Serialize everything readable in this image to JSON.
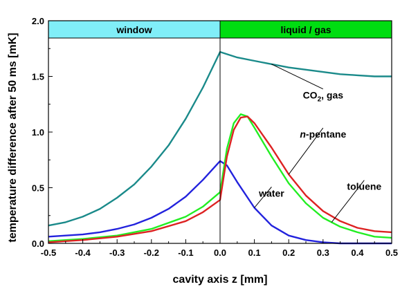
{
  "chart_data": {
    "type": "line",
    "title": "",
    "xlabel": "cavity axis z [mm]",
    "ylabel": "temperature difference after 50 ms [mK]",
    "xlim": [
      -0.5,
      0.5
    ],
    "ylim": [
      0.0,
      2.0
    ],
    "xticks": [
      "-0.5",
      "-0.4",
      "-0.3",
      "-0.2",
      "-0.1",
      "0.0",
      "0.1",
      "0.2",
      "0.3",
      "0.4",
      "0.5"
    ],
    "yticks": [
      "0.0",
      "0.5",
      "1.0",
      "1.5",
      "2.0"
    ],
    "grid": false,
    "legend": "none",
    "regions": [
      {
        "label": "window",
        "x_range": [
          -0.5,
          0.0
        ],
        "color": "#80eef8"
      },
      {
        "label": "liquid / gas",
        "x_range": [
          0.0,
          0.5
        ],
        "color": "#00dd11"
      }
    ],
    "series": [
      {
        "label": "CO2, gas",
        "color": "#1a8a8a",
        "x": [
          -0.5,
          -0.45,
          -0.4,
          -0.35,
          -0.3,
          -0.25,
          -0.2,
          -0.15,
          -0.1,
          -0.05,
          0.0,
          0.05,
          0.1,
          0.15,
          0.2,
          0.25,
          0.3,
          0.35,
          0.4,
          0.45,
          0.5
        ],
        "y": [
          0.16,
          0.19,
          0.24,
          0.31,
          0.41,
          0.53,
          0.69,
          0.88,
          1.12,
          1.4,
          1.72,
          1.67,
          1.64,
          1.61,
          1.58,
          1.56,
          1.54,
          1.52,
          1.51,
          1.5,
          1.5
        ]
      },
      {
        "label": "water",
        "color": "#2222dd",
        "x": [
          -0.5,
          -0.45,
          -0.4,
          -0.35,
          -0.3,
          -0.25,
          -0.2,
          -0.15,
          -0.1,
          -0.05,
          0.0,
          0.02,
          0.05,
          0.1,
          0.15,
          0.2,
          0.25,
          0.3,
          0.35,
          0.4,
          0.5
        ],
        "y": [
          0.06,
          0.07,
          0.08,
          0.1,
          0.13,
          0.17,
          0.23,
          0.31,
          0.42,
          0.57,
          0.74,
          0.7,
          0.55,
          0.32,
          0.16,
          0.07,
          0.03,
          0.01,
          0.0,
          0.0,
          0.0
        ]
      },
      {
        "label": "toluene",
        "color": "#22ee22",
        "x": [
          -0.5,
          -0.4,
          -0.3,
          -0.2,
          -0.1,
          -0.05,
          0.0,
          0.02,
          0.04,
          0.06,
          0.08,
          0.1,
          0.15,
          0.2,
          0.25,
          0.3,
          0.35,
          0.4,
          0.45,
          0.5
        ],
        "y": [
          0.02,
          0.04,
          0.07,
          0.13,
          0.24,
          0.33,
          0.46,
          0.85,
          1.08,
          1.16,
          1.14,
          1.04,
          0.78,
          0.54,
          0.36,
          0.23,
          0.15,
          0.1,
          0.06,
          0.05
        ]
      },
      {
        "label": "n-pentane",
        "color": "#dd2222",
        "x": [
          -0.5,
          -0.4,
          -0.3,
          -0.2,
          -0.1,
          -0.05,
          0.0,
          0.02,
          0.04,
          0.06,
          0.08,
          0.1,
          0.15,
          0.2,
          0.25,
          0.3,
          0.35,
          0.4,
          0.45,
          0.5
        ],
        "y": [
          0.01,
          0.03,
          0.06,
          0.11,
          0.2,
          0.28,
          0.39,
          0.78,
          1.02,
          1.13,
          1.14,
          1.08,
          0.86,
          0.62,
          0.43,
          0.29,
          0.2,
          0.14,
          0.11,
          0.1
        ]
      }
    ],
    "annotations": [
      {
        "text_main": "CO",
        "text_sub": "2",
        "text_rest": ", gas",
        "series": "CO2, gas",
        "point_x": 0.15,
        "label_x": 0.3,
        "label_y": 1.3
      },
      {
        "text_italic": "n",
        "text_rest": "-pentane",
        "series": "n-pentane",
        "point_x": 0.2,
        "label_x": 0.3,
        "label_y": 0.95
      },
      {
        "text_rest": "toluene",
        "series": "toluene",
        "point_x": 0.325,
        "label_x": 0.42,
        "label_y": 0.48
      },
      {
        "text_rest": "water",
        "series": "water",
        "point_x": 0.1,
        "label_x": 0.15,
        "label_y": 0.42
      }
    ]
  }
}
